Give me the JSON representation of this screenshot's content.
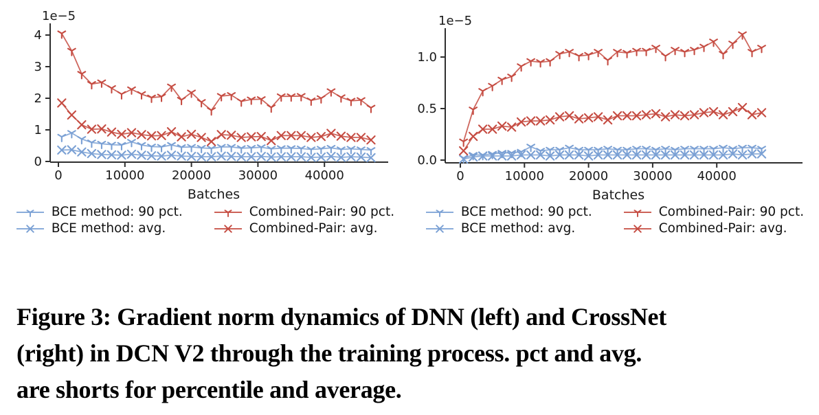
{
  "caption": {
    "lines": [
      "Figure 3: Gradient norm dynamics of DNN (left) and CrossNet",
      "(right) in DCN V2 through the training process. pct and avg.",
      "are shorts for percentile and average."
    ]
  },
  "colors": {
    "bce_blue": "#7aa0d4",
    "combined_red": "#c54b41",
    "axis": "#2e2e2e",
    "tick_text": "#1a1a1a"
  },
  "chart_data": [
    {
      "type": "line",
      "position": "left",
      "title": "",
      "xlabel": "Batches",
      "ylabel": "",
      "offset_label": "1e−5",
      "grid": false,
      "legend_position": "below",
      "xlim": [
        -1800,
        49500
      ],
      "ylim": [
        -0.15,
        4.35
      ],
      "xticks": [
        0,
        10000,
        20000,
        30000,
        40000
      ],
      "xtick_labels": [
        "0",
        "10000",
        "20000",
        "30000",
        "40000"
      ],
      "yticks": [
        0,
        1,
        2,
        3,
        4
      ],
      "ytick_labels": [
        "0",
        "1",
        "2",
        "3",
        "4"
      ],
      "x": [
        500,
        2000,
        3500,
        5000,
        6500,
        8000,
        9500,
        11000,
        12500,
        14000,
        15500,
        17000,
        18500,
        20000,
        21500,
        23000,
        24500,
        26000,
        27500,
        29000,
        30500,
        32000,
        33500,
        35000,
        36500,
        38000,
        39500,
        41000,
        42500,
        44000,
        45500,
        47000
      ],
      "series": [
        {
          "name": "BCE method: 90 pct.",
          "color": "#7aa0d4",
          "marker": "tri_down",
          "values": [
            0.78,
            0.9,
            0.71,
            0.6,
            0.56,
            0.53,
            0.52,
            0.62,
            0.52,
            0.47,
            0.46,
            0.52,
            0.45,
            0.46,
            0.43,
            0.41,
            0.46,
            0.46,
            0.42,
            0.43,
            0.45,
            0.4,
            0.42,
            0.42,
            0.41,
            0.38,
            0.4,
            0.43,
            0.38,
            0.4,
            0.38,
            0.36
          ]
        },
        {
          "name": "BCE method: avg.",
          "color": "#7aa0d4",
          "marker": "x",
          "values": [
            0.36,
            0.37,
            0.3,
            0.25,
            0.22,
            0.21,
            0.2,
            0.23,
            0.2,
            0.18,
            0.17,
            0.2,
            0.17,
            0.16,
            0.15,
            0.15,
            0.17,
            0.16,
            0.15,
            0.15,
            0.16,
            0.14,
            0.15,
            0.15,
            0.15,
            0.13,
            0.14,
            0.16,
            0.13,
            0.15,
            0.14,
            0.12
          ]
        },
        {
          "name": "Combined-Pair: 90 pct.",
          "color": "#c54b41",
          "marker": "tri_down",
          "values": [
            4.05,
            3.5,
            2.77,
            2.45,
            2.5,
            2.32,
            2.13,
            2.28,
            2.13,
            2.02,
            2.05,
            2.37,
            1.95,
            2.18,
            1.88,
            1.62,
            2.07,
            2.1,
            1.9,
            1.96,
            1.97,
            1.71,
            2.06,
            2.06,
            2.07,
            1.93,
            2.0,
            2.22,
            2.03,
            1.92,
            1.94,
            1.7
          ]
        },
        {
          "name": "Combined-Pair: avg.",
          "color": "#c54b41",
          "marker": "x",
          "values": [
            1.85,
            1.47,
            1.16,
            1.02,
            1.03,
            0.93,
            0.86,
            0.91,
            0.85,
            0.81,
            0.82,
            0.94,
            0.78,
            0.86,
            0.76,
            0.63,
            0.85,
            0.83,
            0.76,
            0.78,
            0.79,
            0.66,
            0.82,
            0.82,
            0.82,
            0.76,
            0.79,
            0.89,
            0.8,
            0.76,
            0.76,
            0.68
          ]
        }
      ]
    },
    {
      "type": "line",
      "position": "right",
      "title": "",
      "xlabel": "Batches",
      "ylabel": "",
      "offset_label": "1e−5",
      "grid": false,
      "legend_position": "below",
      "xlim": [
        -1800,
        49500
      ],
      "ylim": [
        -0.05,
        1.3
      ],
      "xticks": [
        0,
        10000,
        20000,
        30000,
        40000
      ],
      "xtick_labels": [
        "0",
        "10000",
        "20000",
        "30000",
        "40000"
      ],
      "yticks": [
        0,
        0.5,
        1.0
      ],
      "ytick_labels": [
        "0.0",
        "0.5",
        "1.0"
      ],
      "x": [
        500,
        2000,
        3500,
        5000,
        6500,
        8000,
        9500,
        11000,
        12500,
        14000,
        15500,
        17000,
        18500,
        20000,
        21500,
        23000,
        24500,
        26000,
        27500,
        29000,
        30500,
        32000,
        33500,
        35000,
        36500,
        38000,
        39500,
        41000,
        42500,
        44000,
        45500,
        47000
      ],
      "series": [
        {
          "name": "BCE method: 90 pct.",
          "color": "#7aa0d4",
          "marker": "tri_down",
          "values": [
            0.02,
            0.05,
            0.05,
            0.06,
            0.07,
            0.07,
            0.08,
            0.13,
            0.09,
            0.1,
            0.1,
            0.12,
            0.1,
            0.1,
            0.1,
            0.11,
            0.1,
            0.1,
            0.11,
            0.11,
            0.1,
            0.11,
            0.1,
            0.11,
            0.11,
            0.11,
            0.11,
            0.12,
            0.11,
            0.12,
            0.12,
            0.11
          ]
        },
        {
          "name": "BCE method: avg.",
          "color": "#7aa0d4",
          "marker": "x",
          "values": [
            0.01,
            0.03,
            0.04,
            0.04,
            0.04,
            0.04,
            0.05,
            0.05,
            0.05,
            0.04,
            0.05,
            0.05,
            0.05,
            0.04,
            0.05,
            0.05,
            0.05,
            0.05,
            0.05,
            0.05,
            0.05,
            0.05,
            0.05,
            0.05,
            0.05,
            0.05,
            0.05,
            0.05,
            0.06,
            0.05,
            0.06,
            0.06
          ]
        },
        {
          "name": "Combined-Pair: 90 pct.",
          "color": "#c54b41",
          "marker": "tri_down",
          "values": [
            0.18,
            0.49,
            0.67,
            0.72,
            0.78,
            0.81,
            0.91,
            0.96,
            0.95,
            0.96,
            1.03,
            1.05,
            1.01,
            1.02,
            1.05,
            0.97,
            1.05,
            1.04,
            1.06,
            1.06,
            1.09,
            1.01,
            1.07,
            1.05,
            1.07,
            1.1,
            1.15,
            1.03,
            1.13,
            1.22,
            1.05,
            1.09
          ]
        },
        {
          "name": "Combined-Pair: avg.",
          "color": "#c54b41",
          "marker": "x",
          "values": [
            0.09,
            0.23,
            0.3,
            0.3,
            0.33,
            0.32,
            0.37,
            0.38,
            0.38,
            0.39,
            0.42,
            0.43,
            0.4,
            0.41,
            0.42,
            0.39,
            0.43,
            0.43,
            0.43,
            0.44,
            0.45,
            0.42,
            0.44,
            0.43,
            0.44,
            0.46,
            0.47,
            0.44,
            0.47,
            0.51,
            0.44,
            0.46
          ]
        }
      ]
    }
  ]
}
